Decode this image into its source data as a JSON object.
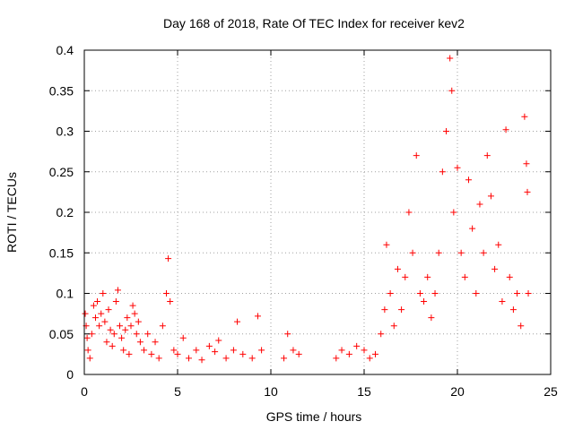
{
  "chart_data": {
    "type": "scatter",
    "title": "Day 168 of 2018, Rate Of TEC Index for receiver kev2",
    "xlabel": "GPS time / hours",
    "ylabel": "ROTI / TECUs",
    "xlim": [
      0,
      25
    ],
    "ylim": [
      0,
      0.4
    ],
    "xticks": [
      0,
      5,
      10,
      15,
      20,
      25
    ],
    "xtick_labels": [
      "0",
      "5",
      "10",
      "15",
      "20",
      "25"
    ],
    "yticks": [
      0,
      0.05,
      0.1,
      0.15,
      0.2,
      0.25,
      0.3,
      0.35,
      0.4
    ],
    "ytick_labels": [
      "0",
      "0.05",
      "0.1",
      "0.15",
      "0.2",
      "0.25",
      "0.3",
      "0.35",
      "0.4"
    ],
    "grid": true,
    "marker": "+",
    "marker_color": "#ff0000",
    "series": [
      {
        "name": "ROTI",
        "points": [
          [
            0.05,
            0.075
          ],
          [
            0.1,
            0.06
          ],
          [
            0.15,
            0.045
          ],
          [
            0.2,
            0.03
          ],
          [
            0.3,
            0.02
          ],
          [
            0.4,
            0.05
          ],
          [
            0.5,
            0.085
          ],
          [
            0.6,
            0.07
          ],
          [
            0.7,
            0.09
          ],
          [
            0.8,
            0.06
          ],
          [
            0.9,
            0.075
          ],
          [
            1.0,
            0.1
          ],
          [
            1.1,
            0.065
          ],
          [
            1.2,
            0.04
          ],
          [
            1.3,
            0.08
          ],
          [
            1.4,
            0.055
          ],
          [
            1.5,
            0.035
          ],
          [
            1.6,
            0.05
          ],
          [
            1.7,
            0.09
          ],
          [
            1.8,
            0.104
          ],
          [
            1.9,
            0.06
          ],
          [
            2.0,
            0.045
          ],
          [
            2.1,
            0.03
          ],
          [
            2.2,
            0.055
          ],
          [
            2.3,
            0.07
          ],
          [
            2.4,
            0.025
          ],
          [
            2.5,
            0.06
          ],
          [
            2.6,
            0.085
          ],
          [
            2.7,
            0.075
          ],
          [
            2.8,
            0.05
          ],
          [
            2.9,
            0.065
          ],
          [
            3.0,
            0.04
          ],
          [
            3.2,
            0.03
          ],
          [
            3.4,
            0.05
          ],
          [
            3.6,
            0.025
          ],
          [
            3.8,
            0.04
          ],
          [
            4.0,
            0.02
          ],
          [
            4.2,
            0.06
          ],
          [
            4.4,
            0.1
          ],
          [
            4.5,
            0.143
          ],
          [
            4.6,
            0.09
          ],
          [
            4.8,
            0.03
          ],
          [
            5.0,
            0.025
          ],
          [
            5.3,
            0.045
          ],
          [
            5.6,
            0.02
          ],
          [
            6.0,
            0.03
          ],
          [
            6.3,
            0.018
          ],
          [
            6.7,
            0.035
          ],
          [
            7.0,
            0.028
          ],
          [
            7.2,
            0.042
          ],
          [
            7.6,
            0.02
          ],
          [
            8.0,
            0.03
          ],
          [
            8.2,
            0.065
          ],
          [
            8.5,
            0.025
          ],
          [
            9.0,
            0.02
          ],
          [
            9.3,
            0.072
          ],
          [
            9.5,
            0.03
          ],
          [
            10.7,
            0.02
          ],
          [
            10.9,
            0.05
          ],
          [
            11.2,
            0.03
          ],
          [
            11.5,
            0.025
          ],
          [
            13.5,
            0.02
          ],
          [
            13.8,
            0.03
          ],
          [
            14.2,
            0.025
          ],
          [
            14.6,
            0.035
          ],
          [
            15.0,
            0.03
          ],
          [
            15.3,
            0.02
          ],
          [
            15.6,
            0.025
          ],
          [
            15.9,
            0.05
          ],
          [
            16.1,
            0.08
          ],
          [
            16.2,
            0.16
          ],
          [
            16.4,
            0.1
          ],
          [
            16.6,
            0.06
          ],
          [
            16.8,
            0.13
          ],
          [
            17.0,
            0.08
          ],
          [
            17.2,
            0.12
          ],
          [
            17.4,
            0.2
          ],
          [
            17.6,
            0.15
          ],
          [
            17.8,
            0.27
          ],
          [
            18.0,
            0.1
          ],
          [
            18.2,
            0.09
          ],
          [
            18.4,
            0.12
          ],
          [
            18.6,
            0.07
          ],
          [
            18.8,
            0.1
          ],
          [
            19.0,
            0.15
          ],
          [
            19.2,
            0.25
          ],
          [
            19.4,
            0.3
          ],
          [
            19.6,
            0.39
          ],
          [
            19.7,
            0.35
          ],
          [
            19.8,
            0.2
          ],
          [
            20.0,
            0.255
          ],
          [
            20.2,
            0.15
          ],
          [
            20.4,
            0.12
          ],
          [
            20.6,
            0.24
          ],
          [
            20.8,
            0.18
          ],
          [
            21.0,
            0.1
          ],
          [
            21.2,
            0.21
          ],
          [
            21.4,
            0.15
          ],
          [
            21.6,
            0.27
          ],
          [
            21.8,
            0.22
          ],
          [
            22.0,
            0.13
          ],
          [
            22.2,
            0.16
          ],
          [
            22.4,
            0.09
          ],
          [
            22.6,
            0.302
          ],
          [
            22.8,
            0.12
          ],
          [
            23.0,
            0.08
          ],
          [
            23.2,
            0.1
          ],
          [
            23.4,
            0.06
          ],
          [
            23.6,
            0.318
          ],
          [
            23.7,
            0.26
          ],
          [
            23.75,
            0.225
          ],
          [
            23.8,
            0.1
          ]
        ]
      }
    ]
  }
}
